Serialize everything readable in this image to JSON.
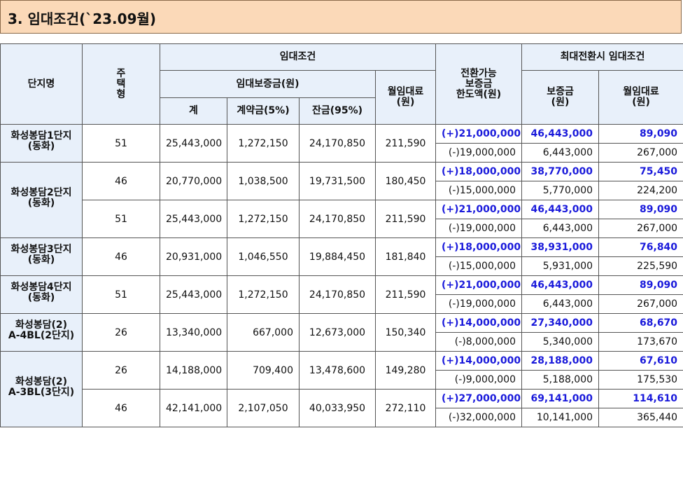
{
  "section_title": "3. 임대조건(`23.09월)",
  "headers": {
    "complex_name": "단지명",
    "housing_type": "주\n택\n형",
    "rental_conditions": "임대조건",
    "deposit": "임대보증금(원)",
    "total": "계",
    "down_payment": "계약금(5%)",
    "balance": "잔금(95%)",
    "monthly_rent": "월임대료\n(원)",
    "convertible_limit": "전환가능\n보증금\n한도액(원)",
    "max_conversion": "최대전환시 임대조건",
    "max_deposit": "보증금\n(원)",
    "max_monthly_rent": "월임대료\n(원)"
  },
  "rows": [
    {
      "name": "화성봉담1단지\n(동화)",
      "type": "51",
      "total": "25,443,000",
      "down": "1,272,150",
      "balance": "24,170,850",
      "rent": "211,590",
      "up": {
        "limit": "(+)21,000,000",
        "deposit": "46,443,000",
        "rent": "89,090"
      },
      "down_conv": {
        "limit": "(-)19,000,000",
        "deposit": "6,443,000",
        "rent": "267,000"
      }
    },
    {
      "name": "화성봉담2단지\n(동화)",
      "type": "46",
      "total": "20,770,000",
      "down": "1,038,500",
      "balance": "19,731,500",
      "rent": "180,450",
      "up": {
        "limit": "(+)18,000,000",
        "deposit": "38,770,000",
        "rent": "75,450"
      },
      "down_conv": {
        "limit": "(-)15,000,000",
        "deposit": "5,770,000",
        "rent": "224,200"
      }
    },
    {
      "name": "",
      "type": "51",
      "total": "25,443,000",
      "down": "1,272,150",
      "balance": "24,170,850",
      "rent": "211,590",
      "up": {
        "limit": "(+)21,000,000",
        "deposit": "46,443,000",
        "rent": "89,090"
      },
      "down_conv": {
        "limit": "(-)19,000,000",
        "deposit": "6,443,000",
        "rent": "267,000"
      }
    },
    {
      "name": "화성봉담3단지\n(동화)",
      "type": "46",
      "total": "20,931,000",
      "down": "1,046,550",
      "balance": "19,884,450",
      "rent": "181,840",
      "up": {
        "limit": "(+)18,000,000",
        "deposit": "38,931,000",
        "rent": "76,840"
      },
      "down_conv": {
        "limit": "(-)15,000,000",
        "deposit": "5,931,000",
        "rent": "225,590"
      }
    },
    {
      "name": "화성봉담4단지\n(동화)",
      "type": "51",
      "total": "25,443,000",
      "down": "1,272,150",
      "balance": "24,170,850",
      "rent": "211,590",
      "up": {
        "limit": "(+)21,000,000",
        "deposit": "46,443,000",
        "rent": "89,090"
      },
      "down_conv": {
        "limit": "(-)19,000,000",
        "deposit": "6,443,000",
        "rent": "267,000"
      }
    },
    {
      "name": "화성봉담(2)\nA-4BL(2단지)",
      "type": "26",
      "total": "13,340,000",
      "down": "667,000",
      "balance": "12,673,000",
      "rent": "150,340",
      "up": {
        "limit": "(+)14,000,000",
        "deposit": "27,340,000",
        "rent": "68,670"
      },
      "down_conv": {
        "limit": "(-)8,000,000",
        "deposit": "5,340,000",
        "rent": "173,670"
      }
    },
    {
      "name": "화성봉담(2)\nA-3BL(3단지)",
      "type": "26",
      "total": "14,188,000",
      "down": "709,400",
      "balance": "13,478,600",
      "rent": "149,280",
      "up": {
        "limit": "(+)14,000,000",
        "deposit": "28,188,000",
        "rent": "67,610"
      },
      "down_conv": {
        "limit": "(-)9,000,000",
        "deposit": "5,188,000",
        "rent": "175,530"
      }
    },
    {
      "name": "",
      "type": "46",
      "total": "42,141,000",
      "down": "2,107,050",
      "balance": "40,033,950",
      "rent": "272,110",
      "up": {
        "limit": "(+)27,000,000",
        "deposit": "69,141,000",
        "rent": "114,610"
      },
      "down_conv": {
        "limit": "(-)32,000,000",
        "deposit": "10,141,000",
        "rent": "365,440"
      }
    }
  ],
  "colors": {
    "title_bg": "#fbd9b8",
    "header_bg": "#e8f0fa",
    "accent_blue": "#1a1adb"
  }
}
